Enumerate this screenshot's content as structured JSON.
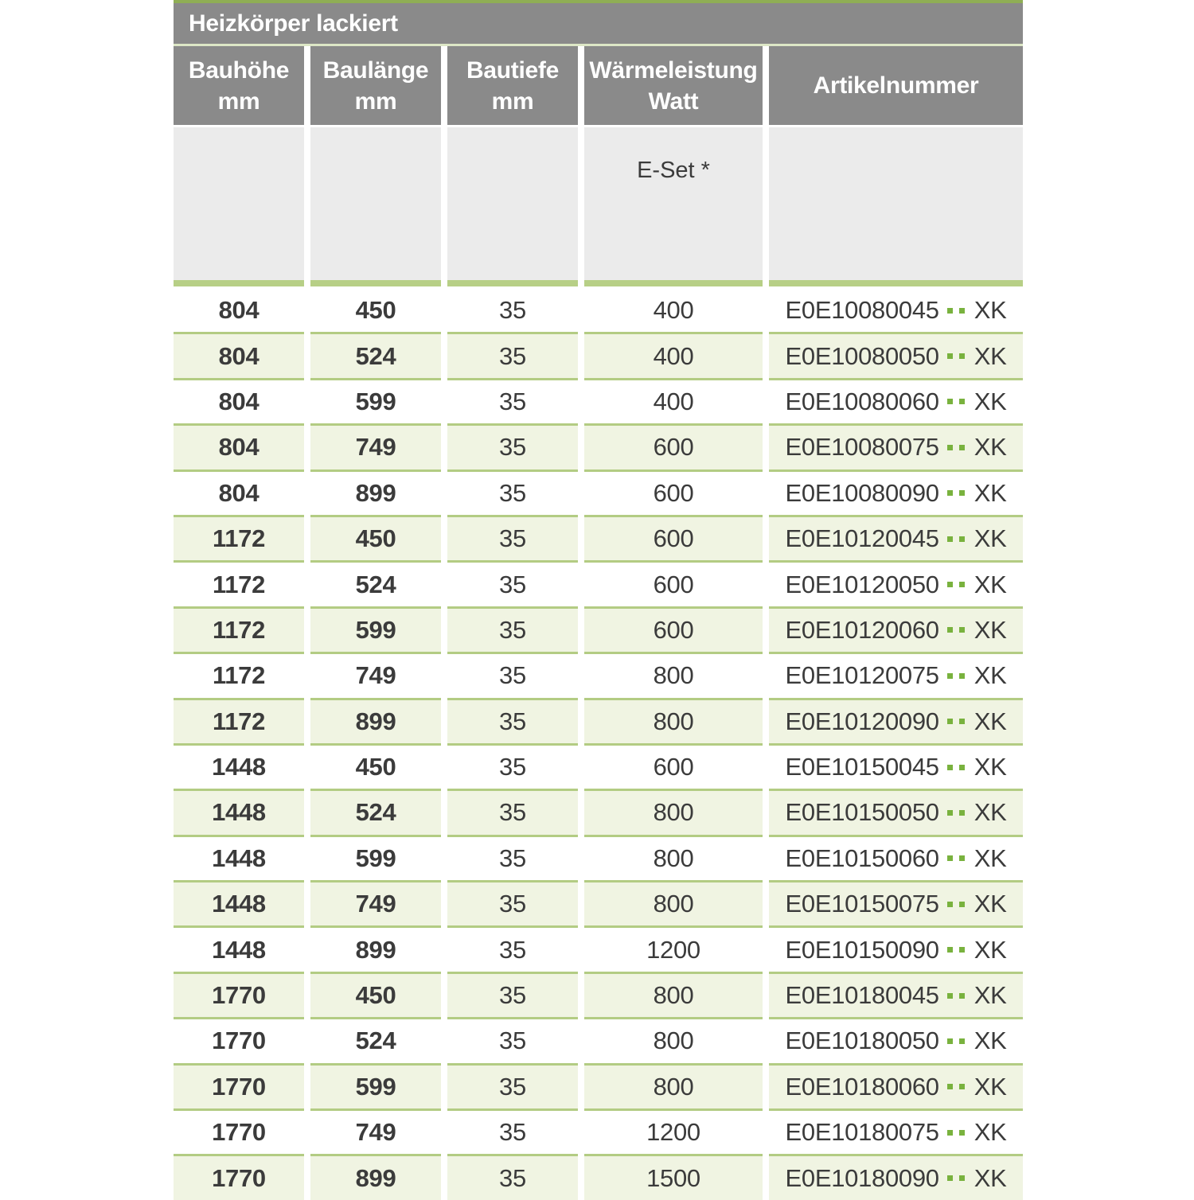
{
  "table": {
    "title": "Heizkörper lackiert",
    "columns": [
      {
        "label": "Bauhöhe",
        "unit": "mm"
      },
      {
        "label": "Baulänge",
        "unit": "mm"
      },
      {
        "label": "Bautiefe",
        "unit": "mm"
      },
      {
        "label": "Wärmeleistung",
        "unit": "Watt"
      },
      {
        "label": "Artikelnummer",
        "unit": ""
      }
    ],
    "subheader_note": "E-Set *",
    "rows": [
      {
        "bauhoehe": "804",
        "baulaenge": "450",
        "bautiefe": "35",
        "watt": "400",
        "artikel_prefix": "E0E10080045",
        "artikel_suffix": "XK"
      },
      {
        "bauhoehe": "804",
        "baulaenge": "524",
        "bautiefe": "35",
        "watt": "400",
        "artikel_prefix": "E0E10080050",
        "artikel_suffix": "XK"
      },
      {
        "bauhoehe": "804",
        "baulaenge": "599",
        "bautiefe": "35",
        "watt": "400",
        "artikel_prefix": "E0E10080060",
        "artikel_suffix": "XK"
      },
      {
        "bauhoehe": "804",
        "baulaenge": "749",
        "bautiefe": "35",
        "watt": "600",
        "artikel_prefix": "E0E10080075",
        "artikel_suffix": "XK"
      },
      {
        "bauhoehe": "804",
        "baulaenge": "899",
        "bautiefe": "35",
        "watt": "600",
        "artikel_prefix": "E0E10080090",
        "artikel_suffix": "XK"
      },
      {
        "bauhoehe": "1172",
        "baulaenge": "450",
        "bautiefe": "35",
        "watt": "600",
        "artikel_prefix": "E0E10120045",
        "artikel_suffix": "XK"
      },
      {
        "bauhoehe": "1172",
        "baulaenge": "524",
        "bautiefe": "35",
        "watt": "600",
        "artikel_prefix": "E0E10120050",
        "artikel_suffix": "XK"
      },
      {
        "bauhoehe": "1172",
        "baulaenge": "599",
        "bautiefe": "35",
        "watt": "600",
        "artikel_prefix": "E0E10120060",
        "artikel_suffix": "XK"
      },
      {
        "bauhoehe": "1172",
        "baulaenge": "749",
        "bautiefe": "35",
        "watt": "800",
        "artikel_prefix": "E0E10120075",
        "artikel_suffix": "XK"
      },
      {
        "bauhoehe": "1172",
        "baulaenge": "899",
        "bautiefe": "35",
        "watt": "800",
        "artikel_prefix": "E0E10120090",
        "artikel_suffix": "XK"
      },
      {
        "bauhoehe": "1448",
        "baulaenge": "450",
        "bautiefe": "35",
        "watt": "600",
        "artikel_prefix": "E0E10150045",
        "artikel_suffix": "XK"
      },
      {
        "bauhoehe": "1448",
        "baulaenge": "524",
        "bautiefe": "35",
        "watt": "800",
        "artikel_prefix": "E0E10150050",
        "artikel_suffix": "XK"
      },
      {
        "bauhoehe": "1448",
        "baulaenge": "599",
        "bautiefe": "35",
        "watt": "800",
        "artikel_prefix": "E0E10150060",
        "artikel_suffix": "XK"
      },
      {
        "bauhoehe": "1448",
        "baulaenge": "749",
        "bautiefe": "35",
        "watt": "800",
        "artikel_prefix": "E0E10150075",
        "artikel_suffix": "XK"
      },
      {
        "bauhoehe": "1448",
        "baulaenge": "899",
        "bautiefe": "35",
        "watt": "1200",
        "artikel_prefix": "E0E10150090",
        "artikel_suffix": "XK"
      },
      {
        "bauhoehe": "1770",
        "baulaenge": "450",
        "bautiefe": "35",
        "watt": "800",
        "artikel_prefix": "E0E10180045",
        "artikel_suffix": "XK"
      },
      {
        "bauhoehe": "1770",
        "baulaenge": "524",
        "bautiefe": "35",
        "watt": "800",
        "artikel_prefix": "E0E10180050",
        "artikel_suffix": "XK"
      },
      {
        "bauhoehe": "1770",
        "baulaenge": "599",
        "bautiefe": "35",
        "watt": "800",
        "artikel_prefix": "E0E10180060",
        "artikel_suffix": "XK"
      },
      {
        "bauhoehe": "1770",
        "baulaenge": "749",
        "bautiefe": "35",
        "watt": "1200",
        "artikel_prefix": "E0E10180075",
        "artikel_suffix": "XK"
      },
      {
        "bauhoehe": "1770",
        "baulaenge": "899",
        "bautiefe": "35",
        "watt": "1500",
        "artikel_prefix": "E0E10180090",
        "artikel_suffix": "XK"
      }
    ]
  },
  "colors": {
    "accent_top_strip": "#8fae55",
    "header_gray": "#8a8a8a",
    "pale_separator_line": "#dde7c6",
    "subheader_bg": "#ebebeb",
    "thick_green_bar": "#b7cf86",
    "row_separator": "#b3cc83",
    "alt_row_bg": "#f0f4e2",
    "dot_green": "#79b23e",
    "text_dark": "#3b3b3b"
  }
}
